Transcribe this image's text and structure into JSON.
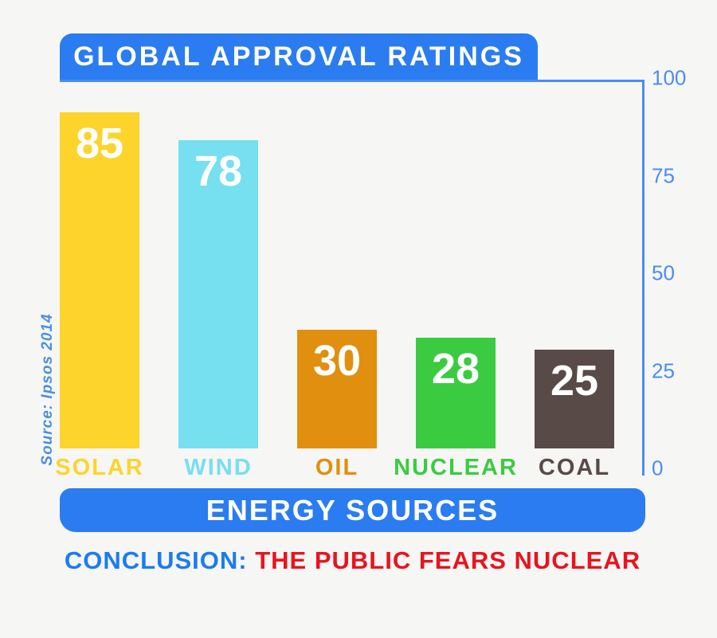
{
  "page": {
    "background_color": "#f6f6f5",
    "banner_color": "#2b7cf0",
    "axis_color": "#4a8cf2"
  },
  "header": {
    "title": "GLOBAL APPROVAL RATINGS"
  },
  "axis": {
    "ticks": [
      "100",
      "75",
      "50",
      "25",
      "0"
    ]
  },
  "chart_data": {
    "type": "bar",
    "title": "GLOBAL APPROVAL RATINGS",
    "xlabel": "ENERGY SOURCES",
    "ylabel": "",
    "categories": [
      "SOLAR",
      "WIND",
      "OIL",
      "NUCLEAR",
      "COAL"
    ],
    "values": [
      85,
      78,
      30,
      28,
      25
    ],
    "bar_colors": [
      "#fcd42c",
      "#76dff0",
      "#e0900e",
      "#3bcb41",
      "#574a47"
    ],
    "value_label_color": "#ffffff",
    "ylim": [
      0,
      100
    ],
    "yticks": [
      0,
      25,
      50,
      75,
      100
    ],
    "grid": false,
    "legend": "none",
    "axis_position": "right",
    "source": "Source: Ipsos 2014"
  },
  "footer": {
    "banner_label": "ENERGY SOURCES",
    "conclusion_prefix": "CONCLUSION:",
    "conclusion_text": " THE PUBLIC FEARS NUCLEAR"
  }
}
